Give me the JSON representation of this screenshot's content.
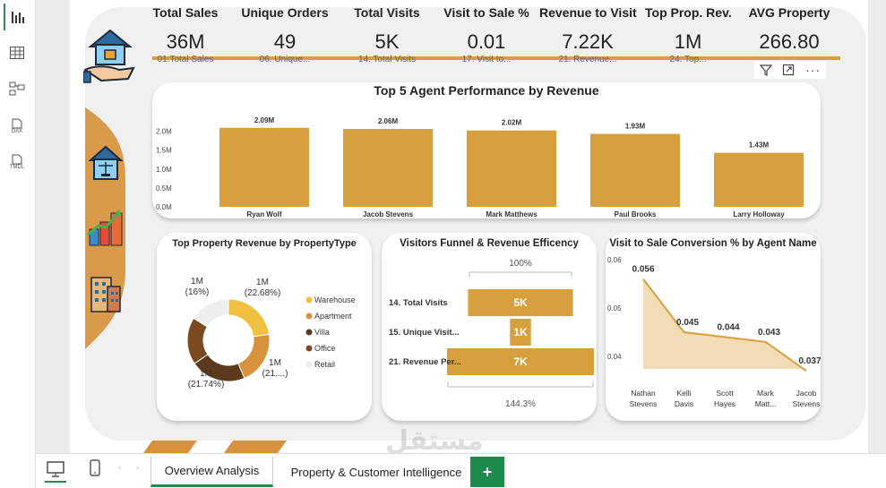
{
  "rail": {
    "items": [
      {
        "icon": "report-icon",
        "label": ""
      },
      {
        "icon": "table-icon",
        "label": ""
      },
      {
        "icon": "model-icon",
        "label": ""
      },
      {
        "icon": "dax-icon",
        "label": "DAX"
      },
      {
        "icon": "tmdl-icon",
        "label": "TMDL"
      }
    ]
  },
  "kpis": [
    {
      "title": "Total Sales",
      "value": "36M",
      "sub": "01.Total Sales"
    },
    {
      "title": "Unique Orders",
      "value": "49",
      "sub": "06. Unique..."
    },
    {
      "title": "Total Visits",
      "value": "5K",
      "sub": "14. Total Visits"
    },
    {
      "title": "Visit to Sale %",
      "value": "0.01",
      "sub": "17. Visit to..."
    },
    {
      "title": "Revenue to Visit",
      "value": "7.22K",
      "sub": "21. Revenue..."
    },
    {
      "title": "Top Prop. Rev.",
      "value": "1M",
      "sub": "24. Top..."
    },
    {
      "title": "AVG Property",
      "value": "266.80",
      "sub": ""
    }
  ],
  "colors": {
    "accent": "#d8a03d",
    "bar": "#d8a03d",
    "side": "#d99a4a",
    "tab_active": "#1e8a4e"
  },
  "bar_chart": {
    "title": "Top 5 Agent Performance by Revenue",
    "chart_data": {
      "type": "bar",
      "categories": [
        "Ryan Wolf",
        "Jacob Stevens",
        "Mark Matthews",
        "Paul Brooks",
        "Larry Holloway"
      ],
      "values": [
        2.09,
        2.06,
        2.02,
        1.93,
        1.43
      ],
      "data_labels": [
        "2.09M",
        "2.06M",
        "2.02M",
        "1.93M",
        "1.43M"
      ],
      "y_ticks": [
        "0.0M",
        "0.5M",
        "1.0M",
        "1.5M",
        "2.0M"
      ],
      "ylim": [
        0,
        2.25
      ]
    }
  },
  "donut_chart": {
    "title": "Top Property Revenue by PropertyType",
    "chart_data": {
      "type": "pie",
      "categories": [
        "Warehouse",
        "Apartment",
        "Villa",
        "Office",
        "Retail"
      ],
      "values": [
        22.68,
        21.0,
        21.74,
        18.58,
        16.0
      ],
      "colors": [
        "#f0c040",
        "#d8923d",
        "#5c3a1e",
        "#7a4a22",
        "#eeeeee"
      ],
      "labels": [
        {
          "l1": "1M",
          "l2": "(22.68%)"
        },
        {
          "l1": "1M",
          "l2": "(21....)"
        },
        {
          "l1": "1M",
          "l2": "(21.74%)"
        },
        {
          "l1": "1M",
          "l2": "(16%)"
        }
      ]
    }
  },
  "funnel_chart": {
    "title": "Visitors Funnel & Revenue Efficency",
    "top_pct": "100%",
    "bottom_pct": "144.3%",
    "chart_data": {
      "type": "bar",
      "categories": [
        "14. Total Visits",
        "15. Unique Visit...",
        "21. Revenue Per..."
      ],
      "values": [
        5000,
        1000,
        7000
      ],
      "data_labels": [
        "5K",
        "1K",
        "7K"
      ]
    }
  },
  "line_chart": {
    "title": "Visit to Sale Conversion % by Agent Name",
    "chart_data": {
      "type": "area",
      "categories": [
        [
          "Nathan",
          "Stevens"
        ],
        [
          "Kelli",
          "Davis"
        ],
        [
          "Scott",
          "Hayes"
        ],
        [
          "Mark",
          "Matt..."
        ],
        [
          "Jacob",
          "Stevens"
        ]
      ],
      "values": [
        0.056,
        0.045,
        0.044,
        0.043,
        0.037
      ],
      "data_labels": [
        "0.056",
        "0.045",
        "0.044",
        "0.043",
        "0.037"
      ],
      "y_ticks": [
        "0.04",
        "0.05",
        "0.06"
      ],
      "ylim": [
        0.035,
        0.06
      ]
    }
  },
  "tabs": {
    "items": [
      "Overview Analysis",
      "Property & Customer Intelligence"
    ],
    "add_label": "+"
  },
  "watermark": "مستقل"
}
